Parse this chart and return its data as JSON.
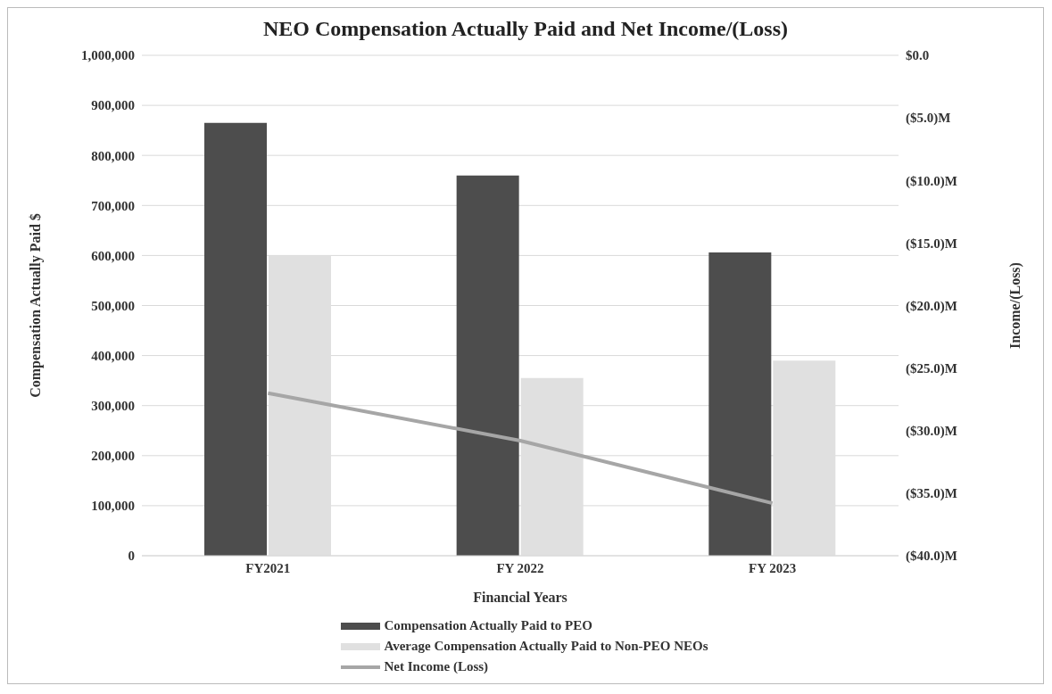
{
  "chart_data": {
    "type": "bar",
    "title": "NEO Compensation Actually Paid and Net Income/(Loss)",
    "xlabel": "Financial Years",
    "ylabel": "Compensation  Actually Paid $",
    "y2label": "Income/(Loss)",
    "categories": [
      "FY2021",
      "FY 2022",
      "FY 2023"
    ],
    "series": [
      {
        "name": "Compensation Actually Paid to PEO",
        "color": "#4d4d4d",
        "values": [
          865000,
          760000,
          606000
        ]
      },
      {
        "name": "Average Compensation Actually Paid to Non-PEO NEOs",
        "color": "#e0e0e0",
        "values": [
          600000,
          355000,
          390000
        ]
      },
      {
        "name": "Net Income (Loss)",
        "type": "line",
        "axis": "y2",
        "color": "#a6a6a6",
        "values": [
          -27.0,
          -30.8,
          -35.8
        ]
      }
    ],
    "ylim": [
      0,
      1000000
    ],
    "yticks": [
      0,
      {
        "value": 100000,
        "label": "100,000"
      },
      {
        "value": 200000,
        "label": "200,000"
      },
      {
        "value": 300000,
        "label": "300,000"
      },
      {
        "value": 400000,
        "label": "400,000"
      },
      {
        "value": 500000,
        "label": "500,000"
      },
      {
        "value": 600000,
        "label": "600,000"
      },
      {
        "value": 700000,
        "label": "700,000"
      },
      {
        "value": 800000,
        "label": "800,000"
      },
      {
        "value": 900000,
        "label": "900,000"
      },
      {
        "value": 1000000,
        "label": "1,000,000"
      }
    ],
    "y2lim": [
      -40,
      0
    ],
    "y2ticks": [
      {
        "value": -40,
        "label": "($40.0)M"
      },
      {
        "value": -35,
        "label": "($35.0)M"
      },
      {
        "value": -30,
        "label": "($30.0)M"
      },
      {
        "value": -25,
        "label": "($25.0)M"
      },
      {
        "value": -20,
        "label": "($20.0)M"
      },
      {
        "value": -15,
        "label": "($15.0)M"
      },
      {
        "value": -10,
        "label": "($10.0)M"
      },
      {
        "value": -5,
        "label": "($5.0)M"
      },
      {
        "value": 0,
        "label": "$0.0"
      }
    ],
    "grid": "y",
    "legend": "bottom",
    "marker": "none",
    "line_style": "solid"
  }
}
